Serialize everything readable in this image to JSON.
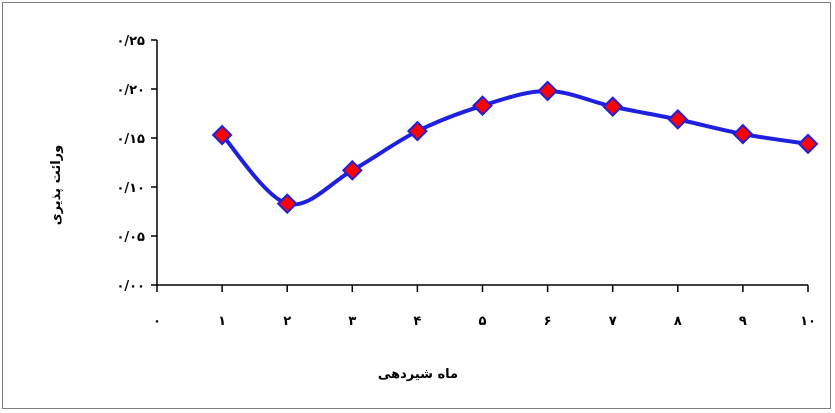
{
  "chart_data": {
    "type": "line",
    "title": "",
    "xlabel": "ماه شیردهی",
    "ylabel": "ورائت پذیری",
    "x": [
      1,
      2,
      3,
      4,
      5,
      6,
      7,
      8,
      9,
      10
    ],
    "x_ticks": [
      "۰",
      "۱",
      "۲",
      "۳",
      "۴",
      "۵",
      "۶",
      "۷",
      "۸",
      "۹",
      "۱۰"
    ],
    "xlim": [
      0,
      10
    ],
    "y_ticks": [
      "۰/۰۰",
      "۰/۰۵",
      "۰/۱۰",
      "۰/۱۵",
      "۰/۲۰",
      "۰/۲۵"
    ],
    "ylim": [
      0,
      0.25
    ],
    "grid": false,
    "legend": "none",
    "series": [
      {
        "values": [
          0.153,
          0.083,
          0.117,
          0.157,
          0.183,
          0.198,
          0.182,
          0.169,
          0.154,
          0.144
        ],
        "line_color": "#1f1fe0",
        "marker": "diamond",
        "marker_fill": "#ff0000",
        "marker_edge": "#1f1fe0"
      }
    ]
  }
}
